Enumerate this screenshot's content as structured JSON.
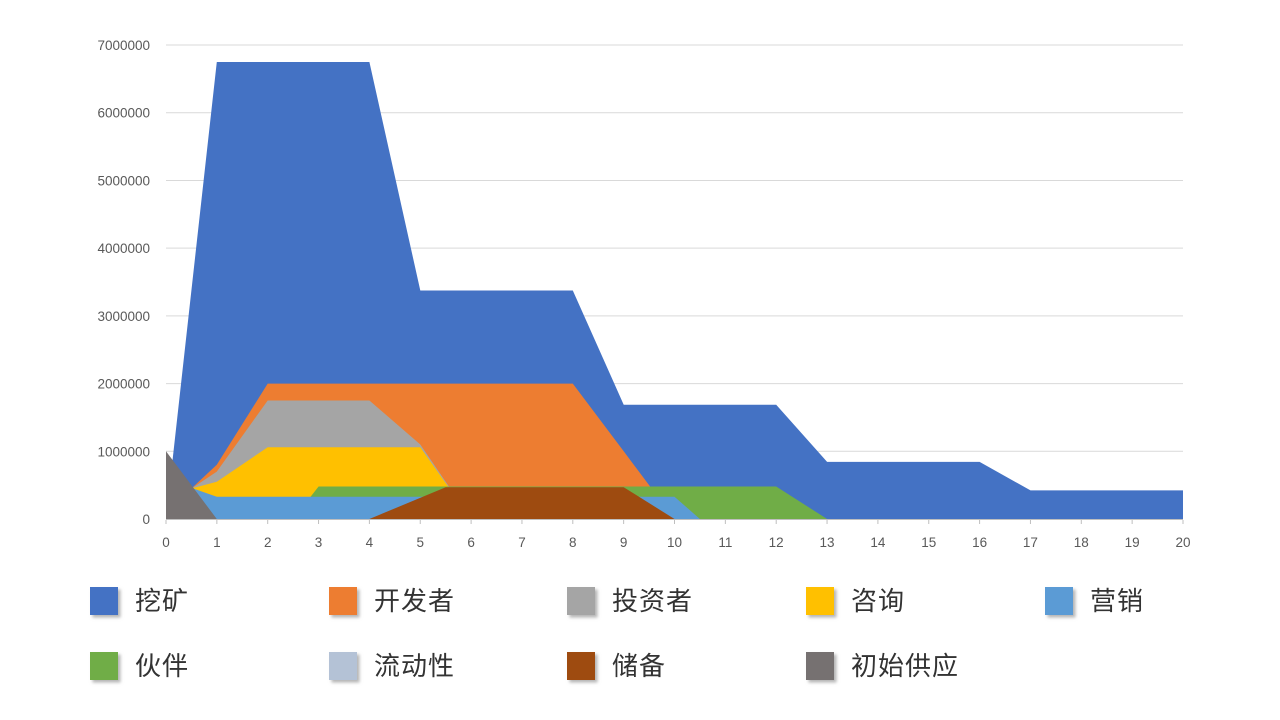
{
  "chart_data": {
    "type": "area",
    "title": "",
    "style": "overlapped-areas (not stacked), later-drawn series occlude earlier ones",
    "x_axis": {
      "min": 0,
      "max": 20,
      "tick_step": 1,
      "ticks": [
        0,
        1,
        2,
        3,
        4,
        5,
        6,
        7,
        8,
        9,
        10,
        11,
        12,
        13,
        14,
        15,
        16,
        17,
        18,
        19,
        20
      ],
      "tick_labels": [
        "0",
        "1",
        "2",
        "3",
        "4",
        "5",
        "6",
        "7",
        "8",
        "9",
        "10",
        "11",
        "12",
        "13",
        "14",
        "15",
        "16",
        "17",
        "18",
        "19",
        "20"
      ]
    },
    "y_axis": {
      "min": 0,
      "max": 7000000,
      "tick_step": 1000000,
      "ticks": [
        0,
        1000000,
        2000000,
        3000000,
        4000000,
        5000000,
        6000000,
        7000000
      ],
      "tick_labels": [
        "0",
        "1000000",
        "2000000",
        "3000000",
        "4000000",
        "5000000",
        "6000000",
        "7000000"
      ],
      "grid": true
    },
    "series": [
      {
        "key": "mining",
        "label": "挖矿",
        "color": "#4472C4",
        "points": [
          [
            0,
            0
          ],
          [
            1,
            6750000
          ],
          [
            4,
            6750000
          ],
          [
            5,
            3375000
          ],
          [
            8,
            3375000
          ],
          [
            9,
            1687500
          ],
          [
            12,
            1687500
          ],
          [
            13,
            843750
          ],
          [
            16,
            843750
          ],
          [
            17,
            421875
          ],
          [
            20,
            421875
          ]
        ]
      },
      {
        "key": "developers",
        "label": "开发者",
        "color": "#ED7D31",
        "points": [
          [
            0.5,
            450000
          ],
          [
            1,
            800000
          ],
          [
            2,
            2000000
          ],
          [
            8,
            2000000
          ],
          [
            9,
            1000000
          ],
          [
            10,
            0
          ]
        ]
      },
      {
        "key": "investors",
        "label": "投资者",
        "color": "#A5A5A5",
        "points": [
          [
            0.5,
            450000
          ],
          [
            1,
            700000
          ],
          [
            2,
            1750000
          ],
          [
            4,
            1750000
          ],
          [
            5,
            1100000
          ],
          [
            6,
            0
          ]
        ]
      },
      {
        "key": "advisory",
        "label": "咨询",
        "color": "#FFC000",
        "points": [
          [
            0.5,
            450000
          ],
          [
            1,
            550000
          ],
          [
            2,
            1060000
          ],
          [
            5,
            1060000
          ],
          [
            6,
            0
          ]
        ]
      },
      {
        "key": "marketing",
        "label": "营销",
        "color": "#5B9BD5",
        "points": [
          [
            0.5,
            460000
          ],
          [
            1,
            330000
          ],
          [
            10,
            330000
          ],
          [
            10.5,
            0
          ]
        ]
      },
      {
        "key": "partners",
        "label": "伙伴",
        "color": "#70AD47",
        "points": [
          [
            2.5,
            0
          ],
          [
            3,
            480000
          ],
          [
            12,
            480000
          ],
          [
            13,
            0
          ]
        ]
      },
      {
        "key": "liquidity",
        "label": "流动性",
        "color": "#B4C2D6",
        "points": [],
        "visible_in_plot": false
      },
      {
        "key": "reserve",
        "label": "储备",
        "color": "#9E4B10",
        "points": [
          [
            4,
            0
          ],
          [
            5.5,
            470000
          ],
          [
            9,
            470000
          ],
          [
            10,
            0
          ]
        ]
      },
      {
        "key": "initial_supply",
        "label": "初始供应",
        "color": "#767171",
        "points": [
          [
            0,
            1000000
          ],
          [
            1,
            0
          ]
        ]
      }
    ],
    "draw_order": [
      "mining",
      "developers",
      "investors",
      "advisory",
      "partners",
      "marketing",
      "liquidity",
      "reserve",
      "initial_supply"
    ],
    "legend_position": "bottom"
  },
  "legend": {
    "rows": [
      [
        "mining",
        "developers",
        "investors",
        "advisory",
        "marketing"
      ],
      [
        "partners",
        "liquidity",
        "reserve",
        "initial_supply"
      ]
    ]
  },
  "colors": {
    "gridline": "#D9D9D9",
    "axis_line": "#BFBFBF",
    "tick_mark": "#BFBFBF",
    "tick_text": "#595959",
    "legend_text": "#333333",
    "background": "#FFFFFF"
  }
}
